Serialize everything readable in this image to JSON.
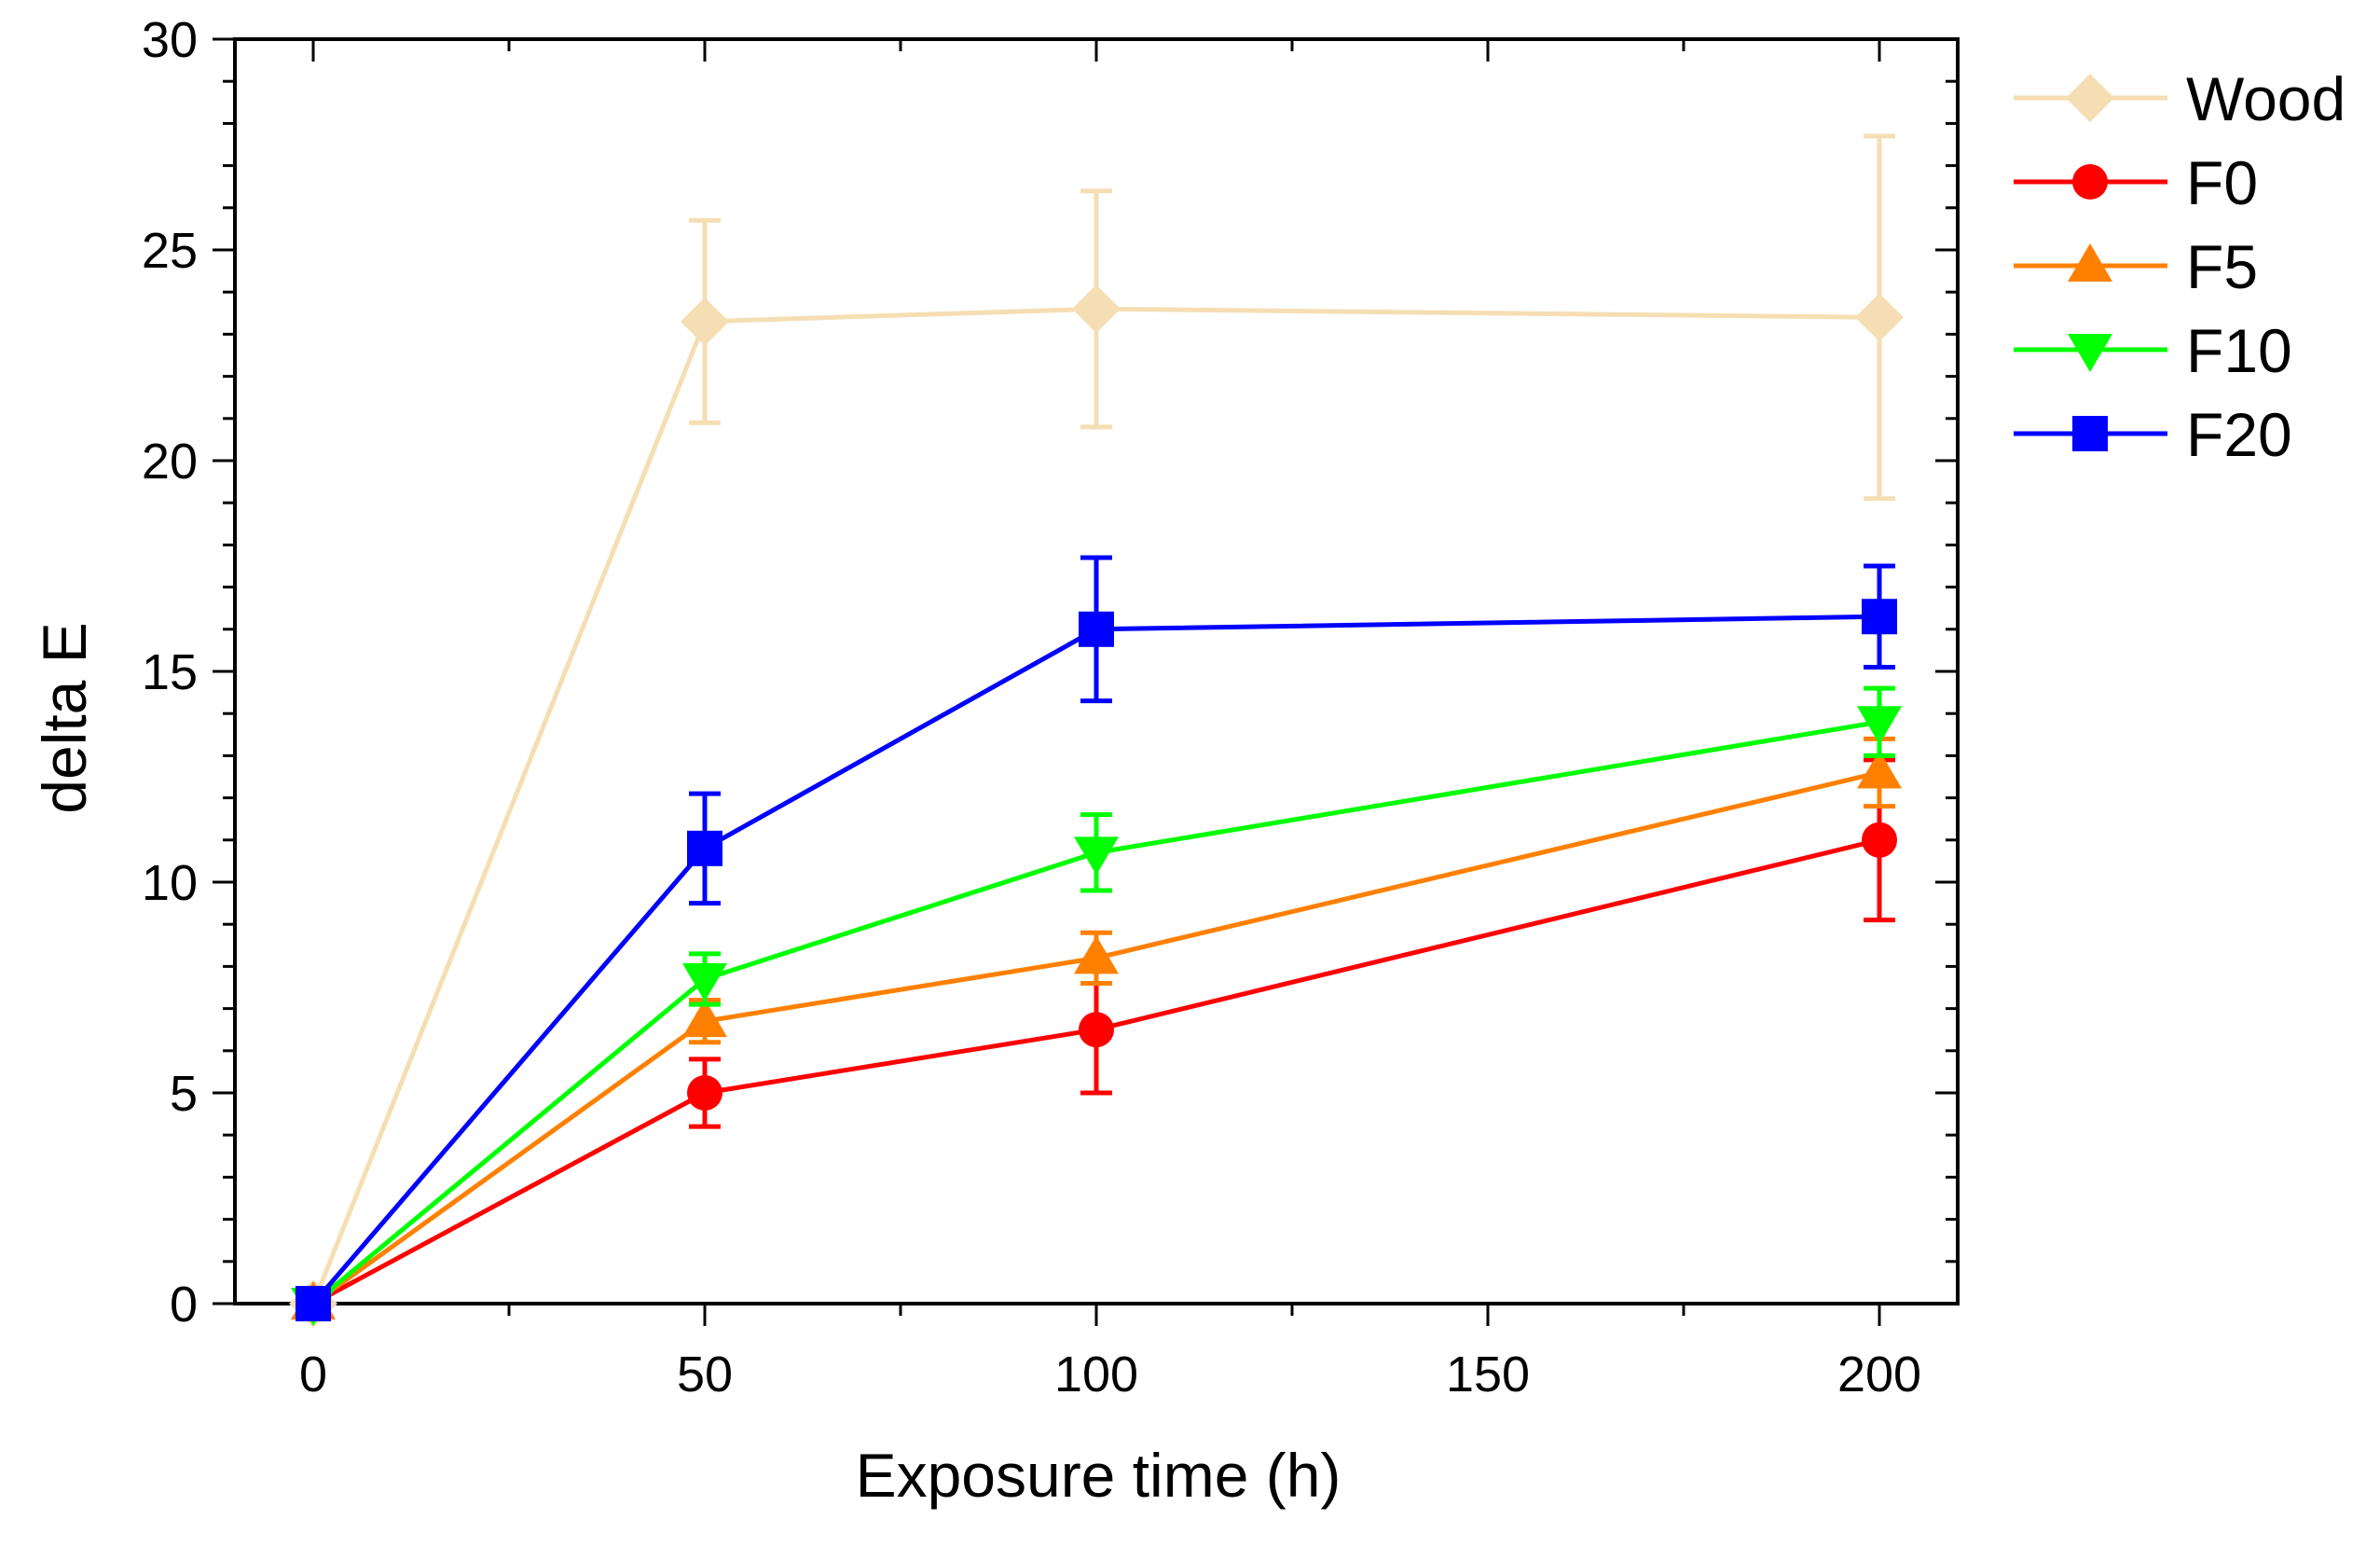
{
  "chart_data": {
    "type": "line",
    "title": "",
    "xlabel": "Exposure time (h)",
    "ylabel": "delta E",
    "xlim": [
      -10,
      210
    ],
    "ylim": [
      0,
      30
    ],
    "x_ticks": [
      0,
      50,
      100,
      150,
      200
    ],
    "y_ticks": [
      0,
      5,
      10,
      15,
      20,
      25,
      30
    ],
    "x_tick_labels": [
      "0",
      "50",
      "100",
      "150",
      "200"
    ],
    "y_tick_labels": [
      "0",
      "5",
      "10",
      "15",
      "20",
      "25",
      "30"
    ],
    "legend_position": "right-outside-top",
    "series": [
      {
        "name": "Wood",
        "color": "#f5deb3",
        "marker": "diamond",
        "x": [
          0,
          50,
          100,
          200
        ],
        "values": [
          0,
          23.3,
          23.6,
          23.4
        ],
        "error": [
          0,
          2.4,
          2.8,
          4.3
        ]
      },
      {
        "name": "F0",
        "color": "#ff0000",
        "marker": "circle",
        "x": [
          0,
          50,
          100,
          200
        ],
        "values": [
          0,
          5.0,
          6.5,
          11.0
        ],
        "error": [
          0,
          0.8,
          1.5,
          1.9
        ]
      },
      {
        "name": "F5",
        "color": "#ff8000",
        "marker": "triangle-up",
        "x": [
          0,
          50,
          100,
          200
        ],
        "values": [
          0,
          6.7,
          8.2,
          12.6
        ],
        "error": [
          0,
          0.5,
          0.6,
          0.8
        ]
      },
      {
        "name": "F10",
        "color": "#00ff00",
        "marker": "triangle-down",
        "x": [
          0,
          50,
          100,
          200
        ],
        "values": [
          0,
          7.7,
          10.7,
          13.8
        ],
        "error": [
          0,
          0.6,
          0.9,
          0.8
        ]
      },
      {
        "name": "F20",
        "color": "#0000ff",
        "marker": "square",
        "x": [
          0,
          50,
          100,
          200
        ],
        "values": [
          0,
          10.8,
          16.0,
          16.3
        ],
        "error": [
          0,
          1.3,
          1.7,
          1.2
        ]
      }
    ]
  }
}
